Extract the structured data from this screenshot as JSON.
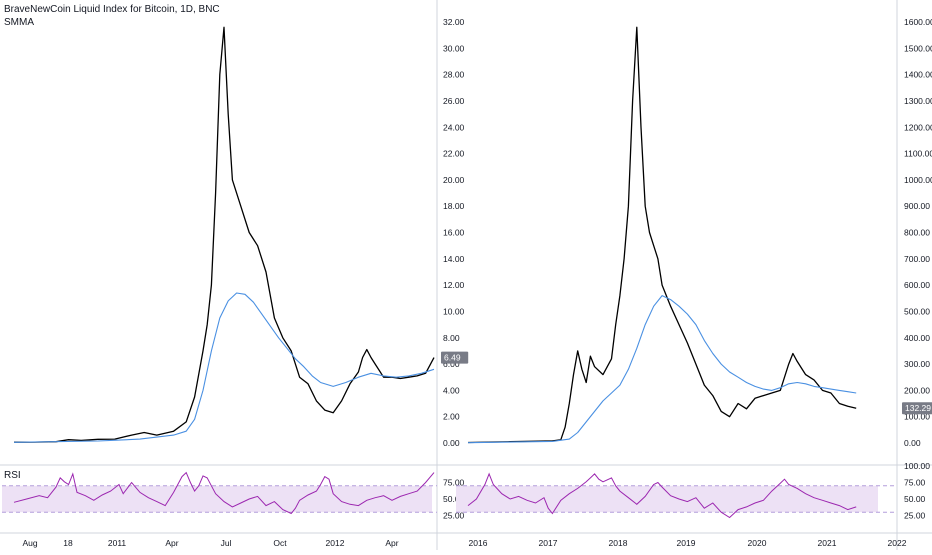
{
  "header": {
    "title": "BraveNewCoin Liquid Index for Bitcoin, 1D, BNC",
    "indicator": "SMMA"
  },
  "rsi_label": "RSI",
  "colors": {
    "price": "#000000",
    "smma": "#4a90e2",
    "rsi_line": "#9c27b0",
    "rsi_band": "#ede1f5",
    "rsi_band_border": "#b39ddb",
    "axis_text": "#131722",
    "separator": "#d1d4dc",
    "label_bg": "#787b86"
  },
  "chart_data": [
    {
      "type": "line",
      "panel": "left",
      "x_ticks": [
        "Aug",
        "18",
        "2011",
        "Apr",
        "Jul",
        "Oct",
        "2012",
        "Apr"
      ],
      "y_ticks": [
        "0.00",
        "2.00",
        "4.00",
        "6.00",
        "8.00",
        "10.00",
        "12.00",
        "14.00",
        "16.00",
        "18.00",
        "20.00",
        "22.00",
        "24.00",
        "26.00",
        "28.00",
        "30.00",
        "32.00"
      ],
      "ylim": [
        0,
        32
      ],
      "last_value_label": "6.49",
      "series": [
        {
          "role": "price",
          "points": [
            [
              0,
              0.06
            ],
            [
              5,
              0.07
            ],
            [
              10,
              0.1
            ],
            [
              13,
              0.25
            ],
            [
              16,
              0.2
            ],
            [
              20,
              0.28
            ],
            [
              24,
              0.3
            ],
            [
              28,
              0.6
            ],
            [
              31,
              0.8
            ],
            [
              34,
              0.6
            ],
            [
              38,
              0.9
            ],
            [
              41,
              1.6
            ],
            [
              43,
              3.5
            ],
            [
              45,
              7
            ],
            [
              46,
              9
            ],
            [
              47,
              12
            ],
            [
              48,
              19
            ],
            [
              49,
              28
            ],
            [
              50,
              31.6
            ],
            [
              51,
              25
            ],
            [
              52,
              20
            ],
            [
              54,
              18
            ],
            [
              56,
              16
            ],
            [
              58,
              15
            ],
            [
              60,
              13
            ],
            [
              62,
              9.5
            ],
            [
              64,
              8
            ],
            [
              66,
              7
            ],
            [
              68,
              5
            ],
            [
              70,
              4.5
            ],
            [
              72,
              3.2
            ],
            [
              74,
              2.5
            ],
            [
              76,
              2.3
            ],
            [
              78,
              3.2
            ],
            [
              80,
              4.5
            ],
            [
              82,
              5.4
            ],
            [
              83,
              6.5
            ],
            [
              84,
              7.1
            ],
            [
              85,
              6.5
            ],
            [
              86,
              6.0
            ],
            [
              88,
              5.0
            ],
            [
              90,
              5.0
            ],
            [
              92,
              4.9
            ],
            [
              94,
              5.0
            ],
            [
              96,
              5.1
            ],
            [
              98,
              5.3
            ],
            [
              100,
              6.49
            ]
          ]
        },
        {
          "role": "smma",
          "points": [
            [
              0,
              0.05
            ],
            [
              20,
              0.15
            ],
            [
              30,
              0.3
            ],
            [
              38,
              0.6
            ],
            [
              41,
              0.9
            ],
            [
              43,
              1.8
            ],
            [
              45,
              4
            ],
            [
              47,
              7
            ],
            [
              49,
              9.5
            ],
            [
              51,
              10.8
            ],
            [
              53,
              11.4
            ],
            [
              55,
              11.3
            ],
            [
              57,
              10.7
            ],
            [
              59,
              9.8
            ],
            [
              61,
              8.9
            ],
            [
              63,
              8.0
            ],
            [
              65,
              7.2
            ],
            [
              67,
              6.4
            ],
            [
              69,
              5.8
            ],
            [
              71,
              5.1
            ],
            [
              73,
              4.6
            ],
            [
              76,
              4.3
            ],
            [
              79,
              4.6
            ],
            [
              82,
              5.0
            ],
            [
              85,
              5.3
            ],
            [
              88,
              5.1
            ],
            [
              91,
              5.0
            ],
            [
              94,
              5.1
            ],
            [
              97,
              5.3
            ],
            [
              100,
              5.6
            ]
          ]
        }
      ],
      "rsi": {
        "ylim": [
          0,
          100
        ],
        "y_ticks": [
          "25.00",
          "50.00",
          "75.00"
        ],
        "band": [
          30,
          70
        ],
        "points": [
          [
            0,
            45
          ],
          [
            3,
            50
          ],
          [
            6,
            55
          ],
          [
            8,
            52
          ],
          [
            10,
            68
          ],
          [
            11,
            82
          ],
          [
            12,
            76
          ],
          [
            13,
            72
          ],
          [
            14,
            88
          ],
          [
            15,
            60
          ],
          [
            17,
            55
          ],
          [
            19,
            48
          ],
          [
            21,
            56
          ],
          [
            23,
            62
          ],
          [
            25,
            72
          ],
          [
            26,
            58
          ],
          [
            28,
            75
          ],
          [
            30,
            60
          ],
          [
            32,
            52
          ],
          [
            34,
            46
          ],
          [
            36,
            40
          ],
          [
            38,
            60
          ],
          [
            40,
            84
          ],
          [
            41,
            90
          ],
          [
            42,
            75
          ],
          [
            43,
            62
          ],
          [
            44,
            70
          ],
          [
            45,
            85
          ],
          [
            46,
            82
          ],
          [
            47,
            70
          ],
          [
            48,
            58
          ],
          [
            50,
            46
          ],
          [
            52,
            38
          ],
          [
            54,
            44
          ],
          [
            56,
            50
          ],
          [
            58,
            54
          ],
          [
            60,
            40
          ],
          [
            62,
            46
          ],
          [
            64,
            34
          ],
          [
            66,
            28
          ],
          [
            67,
            36
          ],
          [
            68,
            48
          ],
          [
            70,
            56
          ],
          [
            72,
            62
          ],
          [
            73,
            72
          ],
          [
            74,
            84
          ],
          [
            75,
            80
          ],
          [
            76,
            58
          ],
          [
            78,
            46
          ],
          [
            80,
            42
          ],
          [
            82,
            40
          ],
          [
            84,
            48
          ],
          [
            86,
            52
          ],
          [
            88,
            55
          ],
          [
            90,
            48
          ],
          [
            92,
            54
          ],
          [
            94,
            58
          ],
          [
            96,
            62
          ],
          [
            98,
            75
          ],
          [
            100,
            90
          ]
        ]
      }
    },
    {
      "type": "line",
      "panel": "right",
      "x_ticks": [
        "2016",
        "2017",
        "2018",
        "2019",
        "2020",
        "2021",
        "2022"
      ],
      "y_ticks": [
        "0.00",
        "100.00",
        "200.00",
        "300.00",
        "400.00",
        "500.00",
        "600.00",
        "700.00",
        "800.00",
        "900.00",
        "1000.00",
        "1100.00",
        "1200.00",
        "1300.00",
        "1400.00",
        "1500.00",
        "1600.00"
      ],
      "ylim": [
        0,
        1600
      ],
      "last_value_label": "132.29",
      "series": [
        {
          "role": "price",
          "points": [
            [
              0,
              2
            ],
            [
              10,
              5
            ],
            [
              20,
              8
            ],
            [
              22,
              12
            ],
            [
              23,
              60
            ],
            [
              24,
              150
            ],
            [
              25,
              260
            ],
            [
              26,
              350
            ],
            [
              27,
              280
            ],
            [
              28,
              230
            ],
            [
              29,
              330
            ],
            [
              30,
              290
            ],
            [
              32,
              260
            ],
            [
              34,
              320
            ],
            [
              35,
              450
            ],
            [
              36,
              560
            ],
            [
              37,
              700
            ],
            [
              38,
              900
            ],
            [
              39,
              1300
            ],
            [
              40,
              1580
            ],
            [
              41,
              1200
            ],
            [
              42,
              900
            ],
            [
              43,
              800
            ],
            [
              44,
              750
            ],
            [
              45,
              700
            ],
            [
              46,
              600
            ],
            [
              48,
              520
            ],
            [
              50,
              450
            ],
            [
              52,
              380
            ],
            [
              54,
              300
            ],
            [
              56,
              220
            ],
            [
              58,
              180
            ],
            [
              60,
              120
            ],
            [
              62,
              100
            ],
            [
              64,
              150
            ],
            [
              66,
              130
            ],
            [
              68,
              170
            ],
            [
              70,
              180
            ],
            [
              72,
              190
            ],
            [
              74,
              200
            ],
            [
              76,
              300
            ],
            [
              77,
              340
            ],
            [
              78,
              310
            ],
            [
              80,
              260
            ],
            [
              82,
              240
            ],
            [
              84,
              200
            ],
            [
              86,
              190
            ],
            [
              88,
              150
            ],
            [
              90,
              140
            ],
            [
              92,
              132.29
            ]
          ]
        },
        {
          "role": "smma",
          "points": [
            [
              0,
              1
            ],
            [
              20,
              6
            ],
            [
              24,
              15
            ],
            [
              26,
              40
            ],
            [
              28,
              80
            ],
            [
              30,
              120
            ],
            [
              32,
              160
            ],
            [
              34,
              190
            ],
            [
              36,
              220
            ],
            [
              38,
              280
            ],
            [
              40,
              360
            ],
            [
              42,
              450
            ],
            [
              44,
              520
            ],
            [
              46,
              560
            ],
            [
              48,
              545
            ],
            [
              50,
              520
            ],
            [
              52,
              490
            ],
            [
              54,
              450
            ],
            [
              56,
              390
            ],
            [
              58,
              340
            ],
            [
              60,
              300
            ],
            [
              62,
              270
            ],
            [
              64,
              250
            ],
            [
              66,
              230
            ],
            [
              68,
              215
            ],
            [
              70,
              205
            ],
            [
              72,
              200
            ],
            [
              74,
              210
            ],
            [
              76,
              225
            ],
            [
              78,
              230
            ],
            [
              80,
              225
            ],
            [
              82,
              215
            ],
            [
              84,
              210
            ],
            [
              86,
              205
            ],
            [
              88,
              200
            ],
            [
              90,
              195
            ],
            [
              92,
              190
            ]
          ]
        }
      ],
      "rsi": {
        "ylim": [
          0,
          100
        ],
        "y_ticks": [
          "25.00",
          "50.00",
          "75.00",
          "100.00"
        ],
        "band": [
          30,
          70
        ],
        "points": [
          [
            0,
            40
          ],
          [
            2,
            50
          ],
          [
            4,
            72
          ],
          [
            5,
            88
          ],
          [
            6,
            72
          ],
          [
            8,
            58
          ],
          [
            10,
            50
          ],
          [
            12,
            54
          ],
          [
            14,
            48
          ],
          [
            16,
            44
          ],
          [
            18,
            52
          ],
          [
            19,
            36
          ],
          [
            20,
            28
          ],
          [
            22,
            48
          ],
          [
            24,
            58
          ],
          [
            26,
            66
          ],
          [
            28,
            76
          ],
          [
            29,
            82
          ],
          [
            30,
            88
          ],
          [
            31,
            80
          ],
          [
            32,
            76
          ],
          [
            34,
            82
          ],
          [
            35,
            70
          ],
          [
            36,
            62
          ],
          [
            38,
            52
          ],
          [
            40,
            42
          ],
          [
            42,
            54
          ],
          [
            44,
            72
          ],
          [
            45,
            75
          ],
          [
            46,
            68
          ],
          [
            48,
            55
          ],
          [
            50,
            50
          ],
          [
            52,
            46
          ],
          [
            54,
            52
          ],
          [
            56,
            36
          ],
          [
            58,
            44
          ],
          [
            60,
            30
          ],
          [
            62,
            22
          ],
          [
            64,
            34
          ],
          [
            66,
            38
          ],
          [
            68,
            44
          ],
          [
            70,
            48
          ],
          [
            72,
            62
          ],
          [
            74,
            74
          ],
          [
            75,
            80
          ],
          [
            76,
            72
          ],
          [
            78,
            66
          ],
          [
            80,
            58
          ],
          [
            82,
            52
          ],
          [
            84,
            48
          ],
          [
            86,
            44
          ],
          [
            88,
            40
          ],
          [
            90,
            34
          ],
          [
            92,
            38
          ]
        ]
      }
    }
  ]
}
